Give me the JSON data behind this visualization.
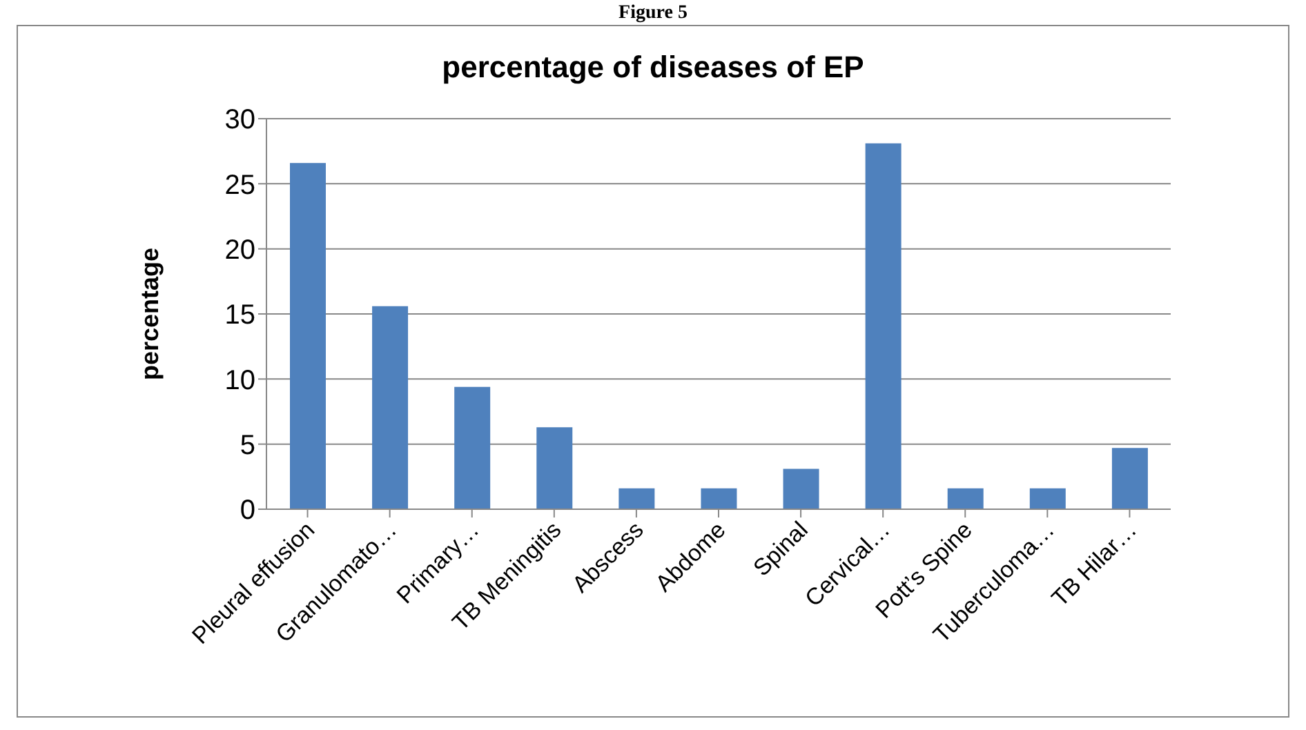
{
  "chart_data": {
    "type": "bar",
    "title": "percentage of diseases of EP",
    "ylabel": "percentage",
    "annotations": [
      "Figure 5"
    ],
    "categories": [
      "Pleural effusion",
      "Granulomato…",
      "Primary…",
      "TB Meningitis",
      "Abscess",
      "Abdome",
      "Spinal",
      "Cervical…",
      "Pott’s Spine",
      "Tuberculoma…",
      "TB Hilar…"
    ],
    "values": [
      26.6,
      15.6,
      9.4,
      6.3,
      1.6,
      1.6,
      3.1,
      28.1,
      1.6,
      1.6,
      4.7
    ],
    "color": "#4f81bd",
    "ylim": [
      0,
      30
    ],
    "yticks": [
      0,
      5,
      10,
      15,
      20,
      25,
      30
    ],
    "grid": "y"
  }
}
